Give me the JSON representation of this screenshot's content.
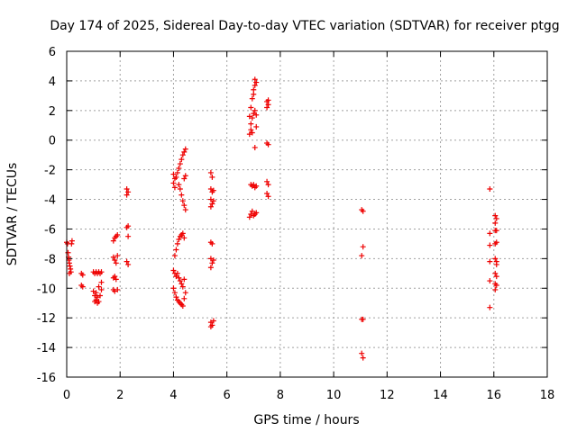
{
  "chart_data": {
    "type": "scatter",
    "title": "Day 174 of 2025, Sidereal Day-to-day VTEC variation (SDTVAR) for receiver ptgg",
    "xlabel": "GPS time / hours",
    "ylabel": "SDTVAR / TECUs",
    "xlim": [
      0,
      18
    ],
    "ylim": [
      -16,
      6
    ],
    "xticks": [
      "0",
      "2",
      "4",
      "6",
      "8",
      "10",
      "12",
      "14",
      "16",
      "18"
    ],
    "yticks": [
      "-16",
      "-14",
      "-12",
      "-10",
      "-8",
      "-6",
      "-4",
      "-2",
      "0",
      "2",
      "4",
      "6"
    ],
    "grid": true,
    "marker": "+",
    "color": "#ee0000",
    "series": [
      {
        "name": "SDTVAR",
        "points": [
          [
            0.0,
            -6.9
          ],
          [
            0.03,
            -7.0
          ],
          [
            0.05,
            -7.6
          ],
          [
            0.07,
            -7.9
          ],
          [
            0.08,
            -8.1
          ],
          [
            0.1,
            -8.3
          ],
          [
            0.12,
            -8.5
          ],
          [
            0.14,
            -8.7
          ],
          [
            0.16,
            -8.9
          ],
          [
            0.18,
            -7.0
          ],
          [
            0.2,
            -6.8
          ],
          [
            0.1,
            -9.0
          ],
          [
            0.55,
            -9.0
          ],
          [
            0.6,
            -9.1
          ],
          [
            0.55,
            -9.8
          ],
          [
            0.6,
            -9.9
          ],
          [
            1.0,
            -8.9
          ],
          [
            1.05,
            -9.0
          ],
          [
            1.1,
            -8.9
          ],
          [
            1.15,
            -9.0
          ],
          [
            1.2,
            -8.9
          ],
          [
            1.25,
            -9.0
          ],
          [
            1.3,
            -8.9
          ],
          [
            1.0,
            -10.2
          ],
          [
            1.05,
            -10.5
          ],
          [
            1.1,
            -10.8
          ],
          [
            1.15,
            -11.0
          ],
          [
            1.2,
            -10.9
          ],
          [
            1.25,
            -10.5
          ],
          [
            1.3,
            -10.1
          ],
          [
            1.1,
            -10.3
          ],
          [
            1.2,
            -9.9
          ],
          [
            1.3,
            -9.6
          ],
          [
            1.05,
            -10.9
          ],
          [
            1.15,
            -10.6
          ],
          [
            1.75,
            -6.8
          ],
          [
            1.8,
            -6.6
          ],
          [
            1.85,
            -6.5
          ],
          [
            1.9,
            -6.4
          ],
          [
            1.75,
            -7.9
          ],
          [
            1.8,
            -8.1
          ],
          [
            1.85,
            -8.3
          ],
          [
            1.9,
            -7.8
          ],
          [
            1.75,
            -9.3
          ],
          [
            1.8,
            -9.2
          ],
          [
            1.85,
            -9.4
          ],
          [
            1.75,
            -10.1
          ],
          [
            1.8,
            -10.2
          ],
          [
            1.9,
            -10.1
          ],
          [
            2.25,
            -3.3
          ],
          [
            2.3,
            -3.5
          ],
          [
            2.25,
            -3.7
          ],
          [
            2.3,
            -5.8
          ],
          [
            2.25,
            -5.9
          ],
          [
            2.3,
            -6.5
          ],
          [
            2.25,
            -8.2
          ],
          [
            2.3,
            -8.4
          ],
          [
            4.0,
            -2.3
          ],
          [
            4.05,
            -2.6
          ],
          [
            4.0,
            -2.9
          ],
          [
            4.05,
            -3.2
          ],
          [
            4.1,
            -2.5
          ],
          [
            4.15,
            -2.2
          ],
          [
            4.2,
            -1.9
          ],
          [
            4.25,
            -1.6
          ],
          [
            4.3,
            -1.3
          ],
          [
            4.35,
            -1.0
          ],
          [
            4.4,
            -0.8
          ],
          [
            4.45,
            -0.6
          ],
          [
            4.4,
            -2.6
          ],
          [
            4.45,
            -2.4
          ],
          [
            4.2,
            -3.0
          ],
          [
            4.25,
            -3.3
          ],
          [
            4.3,
            -3.7
          ],
          [
            4.35,
            -4.1
          ],
          [
            4.4,
            -4.4
          ],
          [
            4.45,
            -4.7
          ],
          [
            4.05,
            -7.8
          ],
          [
            4.1,
            -7.4
          ],
          [
            4.15,
            -7.0
          ],
          [
            4.2,
            -6.7
          ],
          [
            4.25,
            -6.5
          ],
          [
            4.3,
            -6.4
          ],
          [
            4.35,
            -6.3
          ],
          [
            4.4,
            -6.6
          ],
          [
            4.0,
            -8.8
          ],
          [
            4.05,
            -9.0
          ],
          [
            4.1,
            -9.2
          ],
          [
            4.15,
            -9.0
          ],
          [
            4.2,
            -9.3
          ],
          [
            4.25,
            -9.5
          ],
          [
            4.3,
            -9.7
          ],
          [
            4.35,
            -9.9
          ],
          [
            4.4,
            -9.4
          ],
          [
            4.0,
            -10.0
          ],
          [
            4.05,
            -10.3
          ],
          [
            4.1,
            -10.6
          ],
          [
            4.15,
            -10.8
          ],
          [
            4.2,
            -10.9
          ],
          [
            4.25,
            -11.0
          ],
          [
            4.3,
            -11.1
          ],
          [
            4.35,
            -11.2
          ],
          [
            4.4,
            -10.7
          ],
          [
            4.45,
            -10.3
          ],
          [
            5.4,
            -2.2
          ],
          [
            5.45,
            -2.5
          ],
          [
            5.4,
            -3.3
          ],
          [
            5.45,
            -3.5
          ],
          [
            5.5,
            -3.4
          ],
          [
            5.4,
            -4.0
          ],
          [
            5.45,
            -4.3
          ],
          [
            5.4,
            -4.5
          ],
          [
            5.5,
            -4.1
          ],
          [
            5.4,
            -6.9
          ],
          [
            5.45,
            -7.0
          ],
          [
            5.4,
            -8.0
          ],
          [
            5.45,
            -8.3
          ],
          [
            5.5,
            -8.1
          ],
          [
            5.4,
            -8.6
          ],
          [
            5.4,
            -12.3
          ],
          [
            5.45,
            -12.5
          ],
          [
            5.5,
            -12.2
          ],
          [
            5.4,
            -12.6
          ],
          [
            6.85,
            0.4
          ],
          [
            6.9,
            0.7
          ],
          [
            6.9,
            1.1
          ],
          [
            6.95,
            1.5
          ],
          [
            6.85,
            1.6
          ],
          [
            7.0,
            1.8
          ],
          [
            7.05,
            2.0
          ],
          [
            7.1,
            1.7
          ],
          [
            6.9,
            2.2
          ],
          [
            6.95,
            2.8
          ],
          [
            7.0,
            3.1
          ],
          [
            7.0,
            3.4
          ],
          [
            7.05,
            3.7
          ],
          [
            7.1,
            3.9
          ],
          [
            7.05,
            4.1
          ],
          [
            6.95,
            0.5
          ],
          [
            7.1,
            0.9
          ],
          [
            7.05,
            -0.5
          ],
          [
            6.9,
            -3.0
          ],
          [
            6.95,
            -3.1
          ],
          [
            7.0,
            -3.0
          ],
          [
            7.05,
            -3.2
          ],
          [
            7.1,
            -3.1
          ],
          [
            6.85,
            -5.2
          ],
          [
            6.9,
            -5.0
          ],
          [
            6.95,
            -4.8
          ],
          [
            7.0,
            -5.1
          ],
          [
            7.05,
            -5.0
          ],
          [
            7.1,
            -4.9
          ],
          [
            7.5,
            2.6
          ],
          [
            7.55,
            2.4
          ],
          [
            7.5,
            2.2
          ],
          [
            7.55,
            2.7
          ],
          [
            7.5,
            -0.2
          ],
          [
            7.55,
            -0.3
          ],
          [
            7.5,
            -2.8
          ],
          [
            7.55,
            -3.0
          ],
          [
            7.5,
            -3.6
          ],
          [
            7.55,
            -3.8
          ],
          [
            11.05,
            -4.7
          ],
          [
            11.1,
            -4.8
          ],
          [
            11.1,
            -7.2
          ],
          [
            11.05,
            -7.8
          ],
          [
            11.1,
            -12.1
          ],
          [
            11.05,
            -12.1
          ],
          [
            11.05,
            -14.4
          ],
          [
            11.1,
            -14.7
          ],
          [
            15.85,
            -3.3
          ],
          [
            15.85,
            -6.3
          ],
          [
            15.85,
            -7.1
          ],
          [
            15.85,
            -8.2
          ],
          [
            15.85,
            -9.5
          ],
          [
            15.85,
            -11.3
          ],
          [
            16.05,
            -5.1
          ],
          [
            16.1,
            -5.3
          ],
          [
            16.05,
            -5.6
          ],
          [
            16.1,
            -6.1
          ],
          [
            16.05,
            -6.1
          ],
          [
            16.1,
            -6.9
          ],
          [
            16.05,
            -7.0
          ],
          [
            16.05,
            -8.0
          ],
          [
            16.1,
            -8.2
          ],
          [
            16.1,
            -8.4
          ],
          [
            16.05,
            -9.0
          ],
          [
            16.1,
            -9.2
          ],
          [
            16.05,
            -9.7
          ],
          [
            16.1,
            -9.8
          ],
          [
            16.05,
            -10.1
          ]
        ]
      }
    ]
  }
}
